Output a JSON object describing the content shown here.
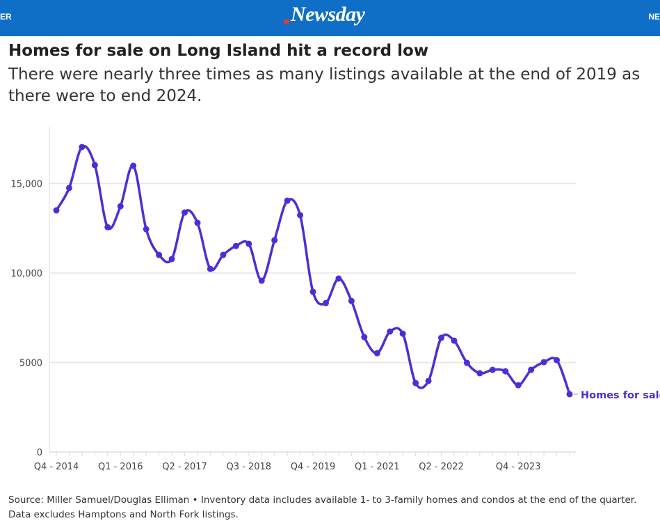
{
  "header": {
    "left_edge": "ER",
    "logo": "Newsday",
    "right_edge": "NE",
    "brand_color": "#0f6fc6"
  },
  "title": "Homes for sale on Long Island hit a record low",
  "subtitle": "There were nearly three times as many listings available at the end of 2019 as there were to end 2024.",
  "source": {
    "line1": "Source: Miller Samuel/Douglas Elliman • Inventory data includes available 1- to 3-family homes and condos at the end of the quarter.",
    "line2": "Data excludes Hamptons and North Fork listings."
  },
  "chart_data": {
    "type": "line",
    "title": "",
    "xlabel": "",
    "ylabel": "",
    "ylim": [
      0,
      18000
    ],
    "yticks": [
      {
        "v": 0,
        "label": "0"
      },
      {
        "v": 5000,
        "label": "5000"
      },
      {
        "v": 10000,
        "label": "10,000"
      },
      {
        "v": 15000,
        "label": "15,000"
      }
    ],
    "xtick_labels": [
      "Q4 - 2014",
      "Q1 - 2016",
      "Q2 - 2017",
      "Q3 - 2018",
      "Q4 - 2019",
      "Q1 - 2021",
      "Q2 - 2022",
      "Q4 - 2023"
    ],
    "grid": "horizontal",
    "color": "#4b2fd6",
    "series": [
      {
        "name": "Homes for sale",
        "x": [
          "Q4 - 2014",
          "Q1 - 2015",
          "Q2 - 2015",
          "Q3 - 2015",
          "Q4 - 2015",
          "Q1 - 2016",
          "Q2 - 2016",
          "Q3 - 2016",
          "Q4 - 2016",
          "Q1 - 2017",
          "Q2 - 2017",
          "Q3 - 2017",
          "Q4 - 2017",
          "Q1 - 2018",
          "Q2 - 2018",
          "Q3 - 2018",
          "Q4 - 2018",
          "Q1 - 2019",
          "Q2 - 2019",
          "Q3 - 2019",
          "Q4 - 2019",
          "Q1 - 2020",
          "Q2 - 2020",
          "Q3 - 2020",
          "Q4 - 2020",
          "Q1 - 2021",
          "Q2 - 2021",
          "Q3 - 2021",
          "Q4 - 2021",
          "Q1 - 2022",
          "Q2 - 2022",
          "Q3 - 2022",
          "Q4 - 2022",
          "Q1 - 2023",
          "Q2 - 2023",
          "Q3 - 2023",
          "Q4 - 2023",
          "Q1 - 2024",
          "Q2 - 2024",
          "Q3 - 2024",
          "Q4 - 2024"
        ],
        "values": [
          13500,
          14750,
          17040,
          16030,
          12560,
          13730,
          15990,
          12450,
          11010,
          10780,
          13380,
          12800,
          10230,
          11010,
          11510,
          11630,
          9570,
          11830,
          14040,
          13230,
          8950,
          8320,
          9690,
          8440,
          6420,
          5520,
          6730,
          6610,
          3850,
          3970,
          6380,
          6220,
          4980,
          4400,
          4590,
          4510,
          3730,
          4590,
          5020,
          5130,
          3230
        ]
      }
    ]
  }
}
